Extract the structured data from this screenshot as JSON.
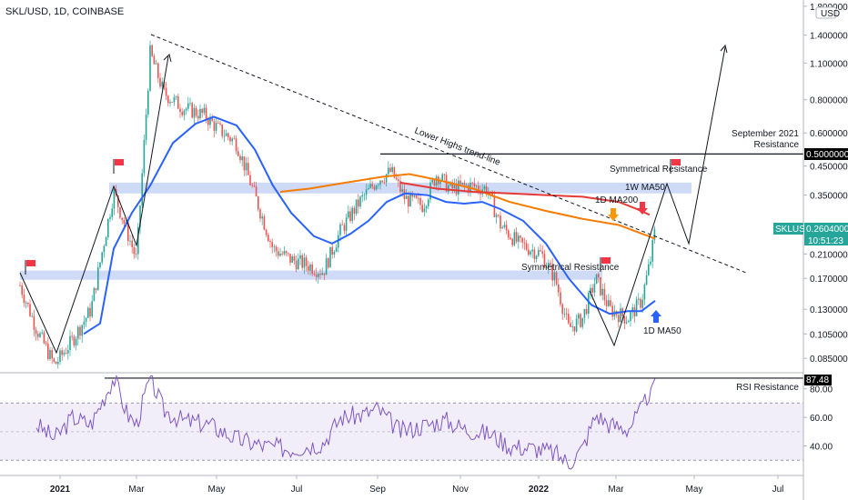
{
  "header": {
    "ticker": "SKL/USD, 1D, COINBASE",
    "currency_badge": "USD"
  },
  "price_axis": {
    "scale": "log",
    "ticks": [
      "1.80000000",
      "1.40000000",
      "1.10000000",
      "0.80000000",
      "0.60000000",
      "0.45000000",
      "0.35000000",
      "0.21000000",
      "0.17000000",
      "0.13000000",
      "0.10500000",
      "0.08500000"
    ]
  },
  "price_tags": {
    "resistance": {
      "label": "0.50000000",
      "bg": "#000000",
      "fg": "#ffffff"
    },
    "symbol": {
      "label": "SKLUSD",
      "bg": "#26a69a",
      "fg": "#ffffff"
    },
    "last_price": {
      "label": "0.26040000",
      "bg": "#26a69a",
      "fg": "#ffffff"
    },
    "countdown": {
      "label": "10:51:23",
      "bg": "#26a69a",
      "fg": "#ffffff"
    }
  },
  "rsi_axis": {
    "ticks": [
      "80.00",
      "60.00",
      "40.00"
    ],
    "current_label": "87.48"
  },
  "time_axis": {
    "ticks": [
      "2021",
      "Mar",
      "May",
      "Jul",
      "Sep",
      "Nov",
      "2022",
      "Mar",
      "May",
      "Jul"
    ]
  },
  "annotations": {
    "trendline": "Lower Highs trend-line",
    "sym_res_top": "Symmetrical Resistance",
    "sym_res_mid": "Symmetrical Resistance",
    "ma_1w": "1W MA50",
    "ma_200": "1D MA200",
    "ma_50": "1D MA50",
    "sept_res_1": "September 2021",
    "sept_res_2": "Resistance",
    "rsi_res": "RSI Resistance"
  },
  "colors": {
    "bull": "#26a69a",
    "bear": "#ef5350",
    "ma50": "#2962ff",
    "ma200": "#f57c00",
    "ma1w": "#e53935",
    "rsi": "#7e57c2",
    "zone": "#c5d3f5",
    "rsi_band": "#ede7f6",
    "flag": "#f23645",
    "arrow_orange": "#ff9800",
    "arrow_red": "#f23645",
    "arrow_blue": "#2962ff"
  },
  "chart_data": {
    "type": "line",
    "title": "SKL/USD, 1D, COINBASE",
    "x_scale": "time",
    "y_scale": "log",
    "x": [
      "2021-01",
      "2021-02",
      "2021-03",
      "2021-04",
      "2021-05",
      "2021-06",
      "2021-07",
      "2021-08",
      "2021-09",
      "2021-10",
      "2021-11",
      "2021-12",
      "2022-01",
      "2022-02",
      "2022-03",
      "2022-04"
    ],
    "series": [
      {
        "name": "SKLUSD",
        "values": [
          0.12,
          0.3,
          1.0,
          0.7,
          0.6,
          0.28,
          0.2,
          0.35,
          0.4,
          0.37,
          0.36,
          0.21,
          0.13,
          0.11,
          0.16,
          0.26
        ]
      },
      {
        "name": "1D MA50",
        "values": [
          null,
          0.11,
          0.25,
          0.5,
          0.62,
          0.45,
          0.27,
          0.26,
          0.34,
          0.32,
          0.32,
          0.28,
          0.21,
          0.14,
          0.12,
          0.14
        ]
      },
      {
        "name": "1D MA200",
        "values": [
          null,
          null,
          null,
          null,
          null,
          null,
          null,
          0.36,
          0.39,
          0.37,
          0.34,
          0.31,
          0.28,
          0.27,
          0.25,
          0.24
        ]
      },
      {
        "name": "1W MA50",
        "values": [
          null,
          null,
          null,
          null,
          null,
          null,
          null,
          null,
          null,
          null,
          0.37,
          0.36,
          0.35,
          0.34,
          0.32,
          0.28
        ]
      }
    ],
    "levels": [
      {
        "label": "September 2021 Resistance",
        "value": 0.5
      },
      {
        "label": "RSI Resistance",
        "value": 87.48
      }
    ],
    "rsi": {
      "ylim": [
        20,
        90
      ],
      "last": 87.48,
      "values": [
        60,
        70,
        85,
        65,
        55,
        45,
        40,
        50,
        65,
        55,
        45,
        40,
        25,
        40,
        60,
        87.48
      ]
    },
    "ylim": [
      0.08,
      1.9
    ],
    "grid": true,
    "legend": "none"
  }
}
